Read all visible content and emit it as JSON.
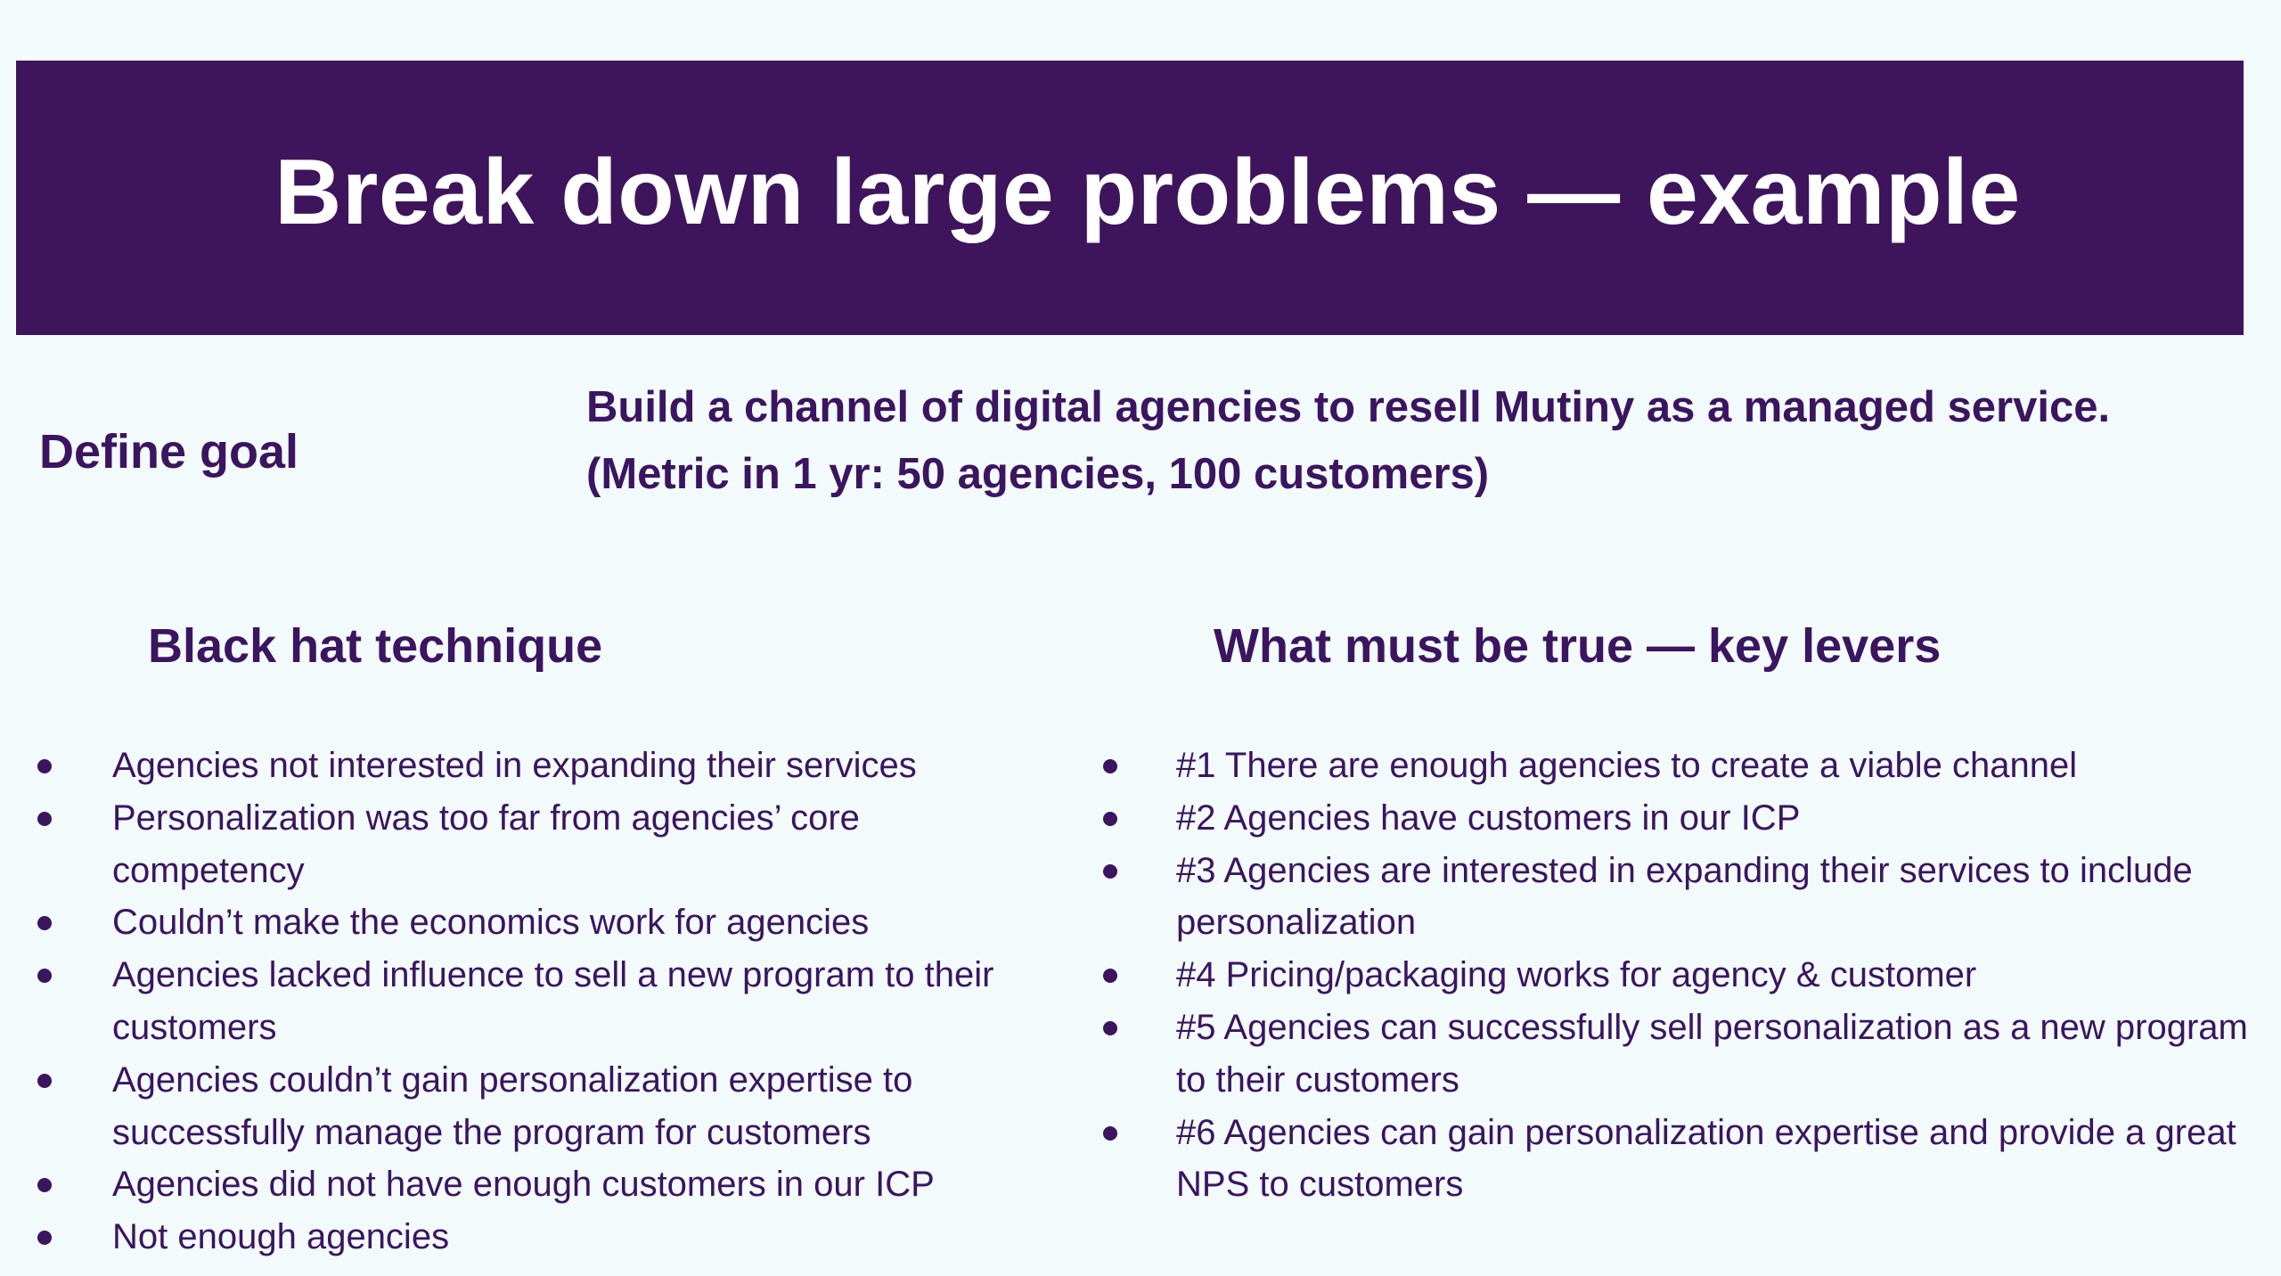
{
  "banner": {
    "title": "Break down large problems — example"
  },
  "goal": {
    "label": "Define goal",
    "line1": "Build a channel of digital agencies to resell Mutiny as a managed service.",
    "line2": "(Metric in 1 yr: 50 agencies, 100 customers)"
  },
  "black_hat": {
    "heading": "Black hat technique",
    "items": [
      "Agencies not interested in expanding their services",
      "Personalization was too far from agencies’ core competency",
      "Couldn’t make the economics work for agencies",
      "Agencies lacked influence to sell a new program to their customers",
      "Agencies couldn’t gain personalization expertise to successfully manage the program for customers",
      "Agencies did not have enough customers in our ICP",
      "Not enough agencies"
    ]
  },
  "key_levers": {
    "heading": "What must be true — key levers",
    "items": [
      "#1 There are enough agencies to create a viable channel",
      "#2 Agencies have customers in our ICP",
      "#3 Agencies are interested in expanding their services to include personalization",
      "#4 Pricing/packaging works for agency & customer",
      "#5 Agencies can successfully sell personalization as a new program to their customers",
      "#6 Agencies can gain personalization expertise and provide a great NPS to customers"
    ]
  },
  "colors": {
    "banner_bg": "#3e155c",
    "text": "#3b1560",
    "page_bg": "#f2fafc"
  }
}
